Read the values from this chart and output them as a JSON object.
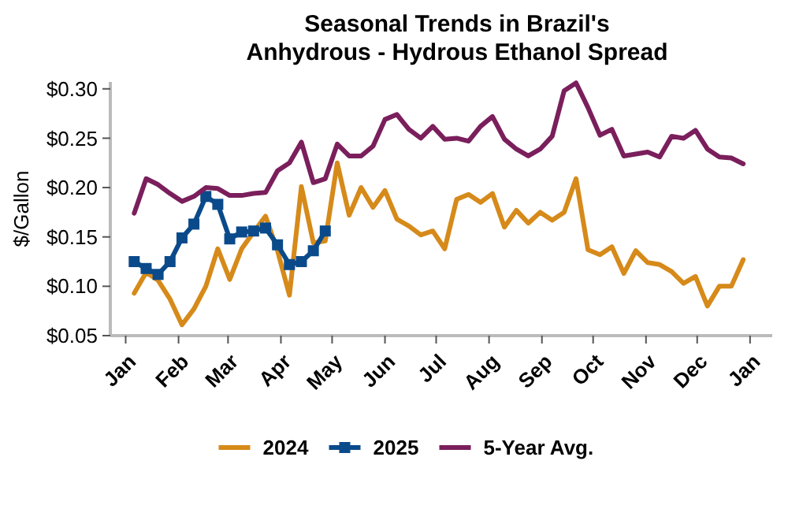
{
  "chart_data": {
    "type": "line",
    "title": "Seasonal Trends in Brazil's\nAnhydrous - Hydrous Ethanol Spread",
    "ylabel": "$/Gallon",
    "x": [
      "2024-01-06",
      "2024-01-13",
      "2024-01-20",
      "2024-01-27",
      "2024-02-03",
      "2024-02-10",
      "2024-02-17",
      "2024-02-24",
      "2024-03-02",
      "2024-03-09",
      "2024-03-16",
      "2024-03-23",
      "2024-03-30",
      "2024-04-06",
      "2024-04-13",
      "2024-04-20",
      "2024-04-27",
      "2024-05-04",
      "2024-05-11",
      "2024-05-18",
      "2024-05-25",
      "2024-06-01",
      "2024-06-08",
      "2024-06-15",
      "2024-06-22",
      "2024-06-29",
      "2024-07-06",
      "2024-07-13",
      "2024-07-20",
      "2024-07-27",
      "2024-08-03",
      "2024-08-10",
      "2024-08-17",
      "2024-08-24",
      "2024-08-31",
      "2024-09-07",
      "2024-09-14",
      "2024-09-21",
      "2024-09-28",
      "2024-10-05",
      "2024-10-12",
      "2024-10-19",
      "2024-10-26",
      "2024-11-02",
      "2024-11-09",
      "2024-11-16",
      "2024-11-23",
      "2024-11-30",
      "2024-12-07",
      "2024-12-14",
      "2024-12-21",
      "2024-12-28"
    ],
    "series": [
      {
        "name": "2024",
        "color": "#d68a1a",
        "marker": "none",
        "values": [
          0.093,
          0.114,
          0.106,
          0.087,
          0.061,
          0.077,
          0.1,
          0.138,
          0.107,
          0.138,
          0.155,
          0.171,
          0.136,
          0.091,
          0.201,
          0.144,
          0.146,
          0.225,
          0.172,
          0.2,
          0.18,
          0.197,
          0.168,
          0.161,
          0.152,
          0.156,
          0.138,
          0.188,
          0.193,
          0.185,
          0.194,
          0.16,
          0.177,
          0.164,
          0.175,
          0.167,
          0.175,
          0.209,
          0.137,
          0.132,
          0.14,
          0.113,
          0.136,
          0.124,
          0.122,
          0.115,
          0.103,
          0.11,
          0.08,
          0.1,
          0.1,
          0.127
        ]
      },
      {
        "name": "2025",
        "color": "#0a4a8a",
        "marker": "square",
        "values": [
          0.125,
          0.118,
          0.112,
          0.125,
          0.149,
          0.163,
          0.191,
          0.183,
          0.148,
          0.155,
          0.156,
          0.159,
          0.142,
          0.122,
          0.125,
          0.136,
          0.156,
          null,
          null,
          null,
          null,
          null,
          null,
          null,
          null,
          null,
          null,
          null,
          null,
          null,
          null,
          null,
          null,
          null,
          null,
          null,
          null,
          null,
          null,
          null,
          null,
          null,
          null,
          null,
          null,
          null,
          null,
          null,
          null,
          null,
          null,
          null
        ]
      },
      {
        "name": "5-Year Avg.",
        "color": "#7a1f5c",
        "marker": "none",
        "values": [
          0.174,
          0.209,
          0.203,
          0.194,
          0.186,
          0.191,
          0.2,
          0.199,
          0.192,
          0.192,
          0.194,
          0.195,
          0.217,
          0.225,
          0.246,
          0.205,
          0.209,
          0.244,
          0.232,
          0.232,
          0.242,
          0.269,
          0.274,
          0.259,
          0.25,
          0.262,
          0.249,
          0.25,
          0.247,
          0.262,
          0.272,
          0.249,
          0.239,
          0.232,
          0.239,
          0.252,
          0.298,
          0.306,
          0.281,
          0.253,
          0.259,
          0.232,
          0.234,
          0.236,
          0.231,
          0.252,
          0.25,
          0.258,
          0.239,
          0.231,
          0.23,
          0.224
        ]
      }
    ],
    "xlim": [
      "2023-12-23",
      "2025-01-14"
    ],
    "xticks": [
      {
        "value": "2024-01-01",
        "label": "Jan"
      },
      {
        "value": "2024-02-01",
        "label": "Feb"
      },
      {
        "value": "2024-03-01",
        "label": "Mar"
      },
      {
        "value": "2024-04-01",
        "label": "Apr"
      },
      {
        "value": "2024-05-01",
        "label": "May"
      },
      {
        "value": "2024-06-01",
        "label": "Jun"
      },
      {
        "value": "2024-07-01",
        "label": "Jul"
      },
      {
        "value": "2024-08-01",
        "label": "Aug"
      },
      {
        "value": "2024-09-01",
        "label": "Sep"
      },
      {
        "value": "2024-10-01",
        "label": "Oct"
      },
      {
        "value": "2024-11-01",
        "label": "Nov"
      },
      {
        "value": "2024-12-01",
        "label": "Dec"
      },
      {
        "value": "2025-01-01",
        "label": "Jan"
      }
    ],
    "ylim": [
      0.05,
      0.307
    ],
    "yticks": [
      {
        "value": 0.05,
        "label": "$0.05"
      },
      {
        "value": 0.1,
        "label": "$0.10"
      },
      {
        "value": 0.15,
        "label": "$0.15"
      },
      {
        "value": 0.2,
        "label": "$0.20"
      },
      {
        "value": 0.25,
        "label": "$0.25"
      },
      {
        "value": 0.3,
        "label": "$0.30"
      }
    ],
    "grid": false,
    "legend": "bottom",
    "line_style": "solid"
  }
}
